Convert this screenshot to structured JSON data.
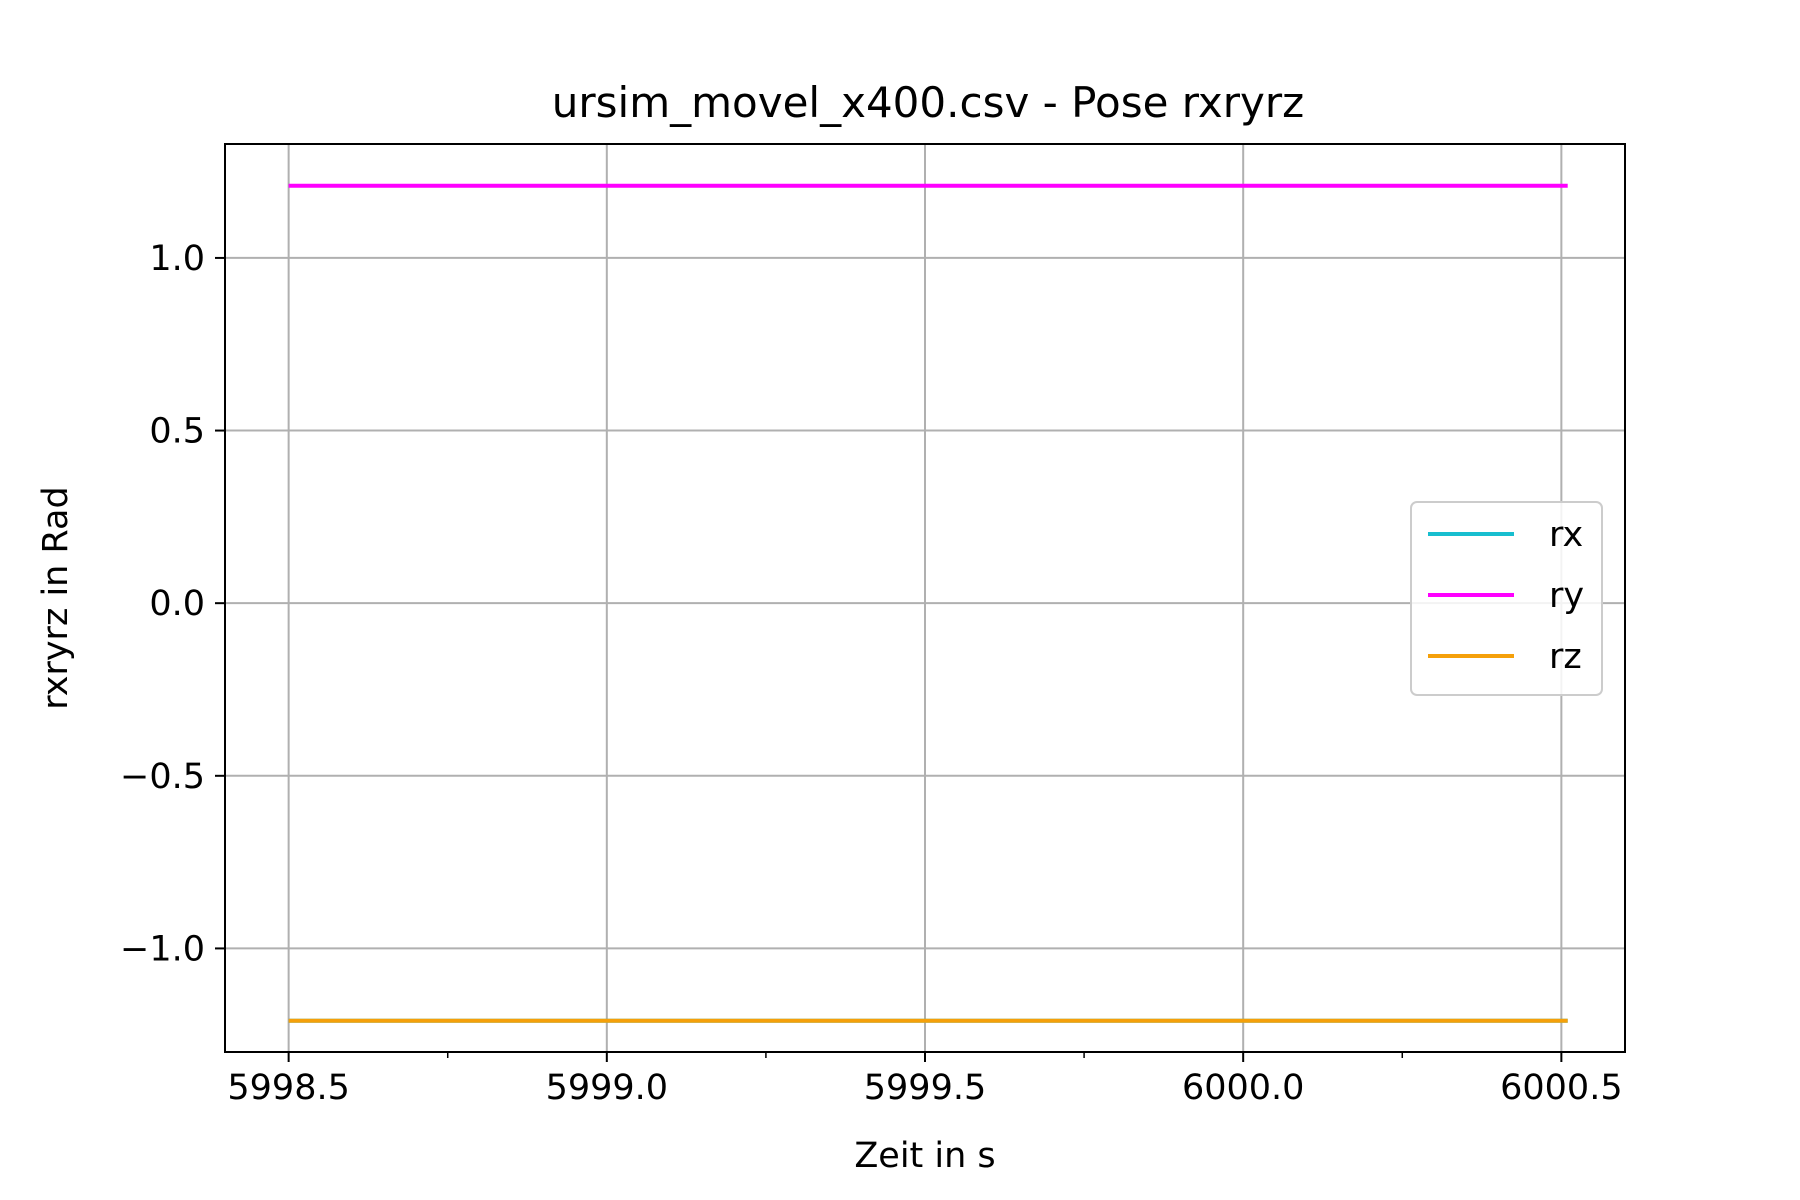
{
  "chart_data": {
    "type": "line",
    "title": "ursim_movel_x400.csv - Pose rxryrz",
    "xlabel": "Zeit in s",
    "ylabel": "rxryrz in Rad",
    "xlim": [
      5998.4,
      6000.6
    ],
    "ylim": [
      -1.3,
      1.33
    ],
    "xticks": [
      5998.5,
      5999.0,
      5999.5,
      6000.0,
      6000.5
    ],
    "xtick_labels": [
      "5998.5",
      "5999.0",
      "5999.5",
      "6000.0",
      "6000.5"
    ],
    "xminor_ticks": [
      5998.75,
      5999.25,
      5999.75,
      6000.25
    ],
    "yticks": [
      -1.0,
      -0.5,
      0.0,
      0.5,
      1.0
    ],
    "ytick_labels": [
      "−1.0",
      "−0.5",
      "0.0",
      "0.5",
      "1.0"
    ],
    "grid": true,
    "legend_position": "center-right",
    "x": [
      5998.5,
      6000.51
    ],
    "series": [
      {
        "name": "rx",
        "color": "#17becf",
        "values": [
          -1.2092,
          -1.2092
        ]
      },
      {
        "name": "ry",
        "color": "#ff00ff",
        "values": [
          1.2092,
          1.2092
        ]
      },
      {
        "name": "rz",
        "color": "#f5a00a",
        "values": [
          -1.2092,
          -1.2092
        ]
      }
    ]
  }
}
